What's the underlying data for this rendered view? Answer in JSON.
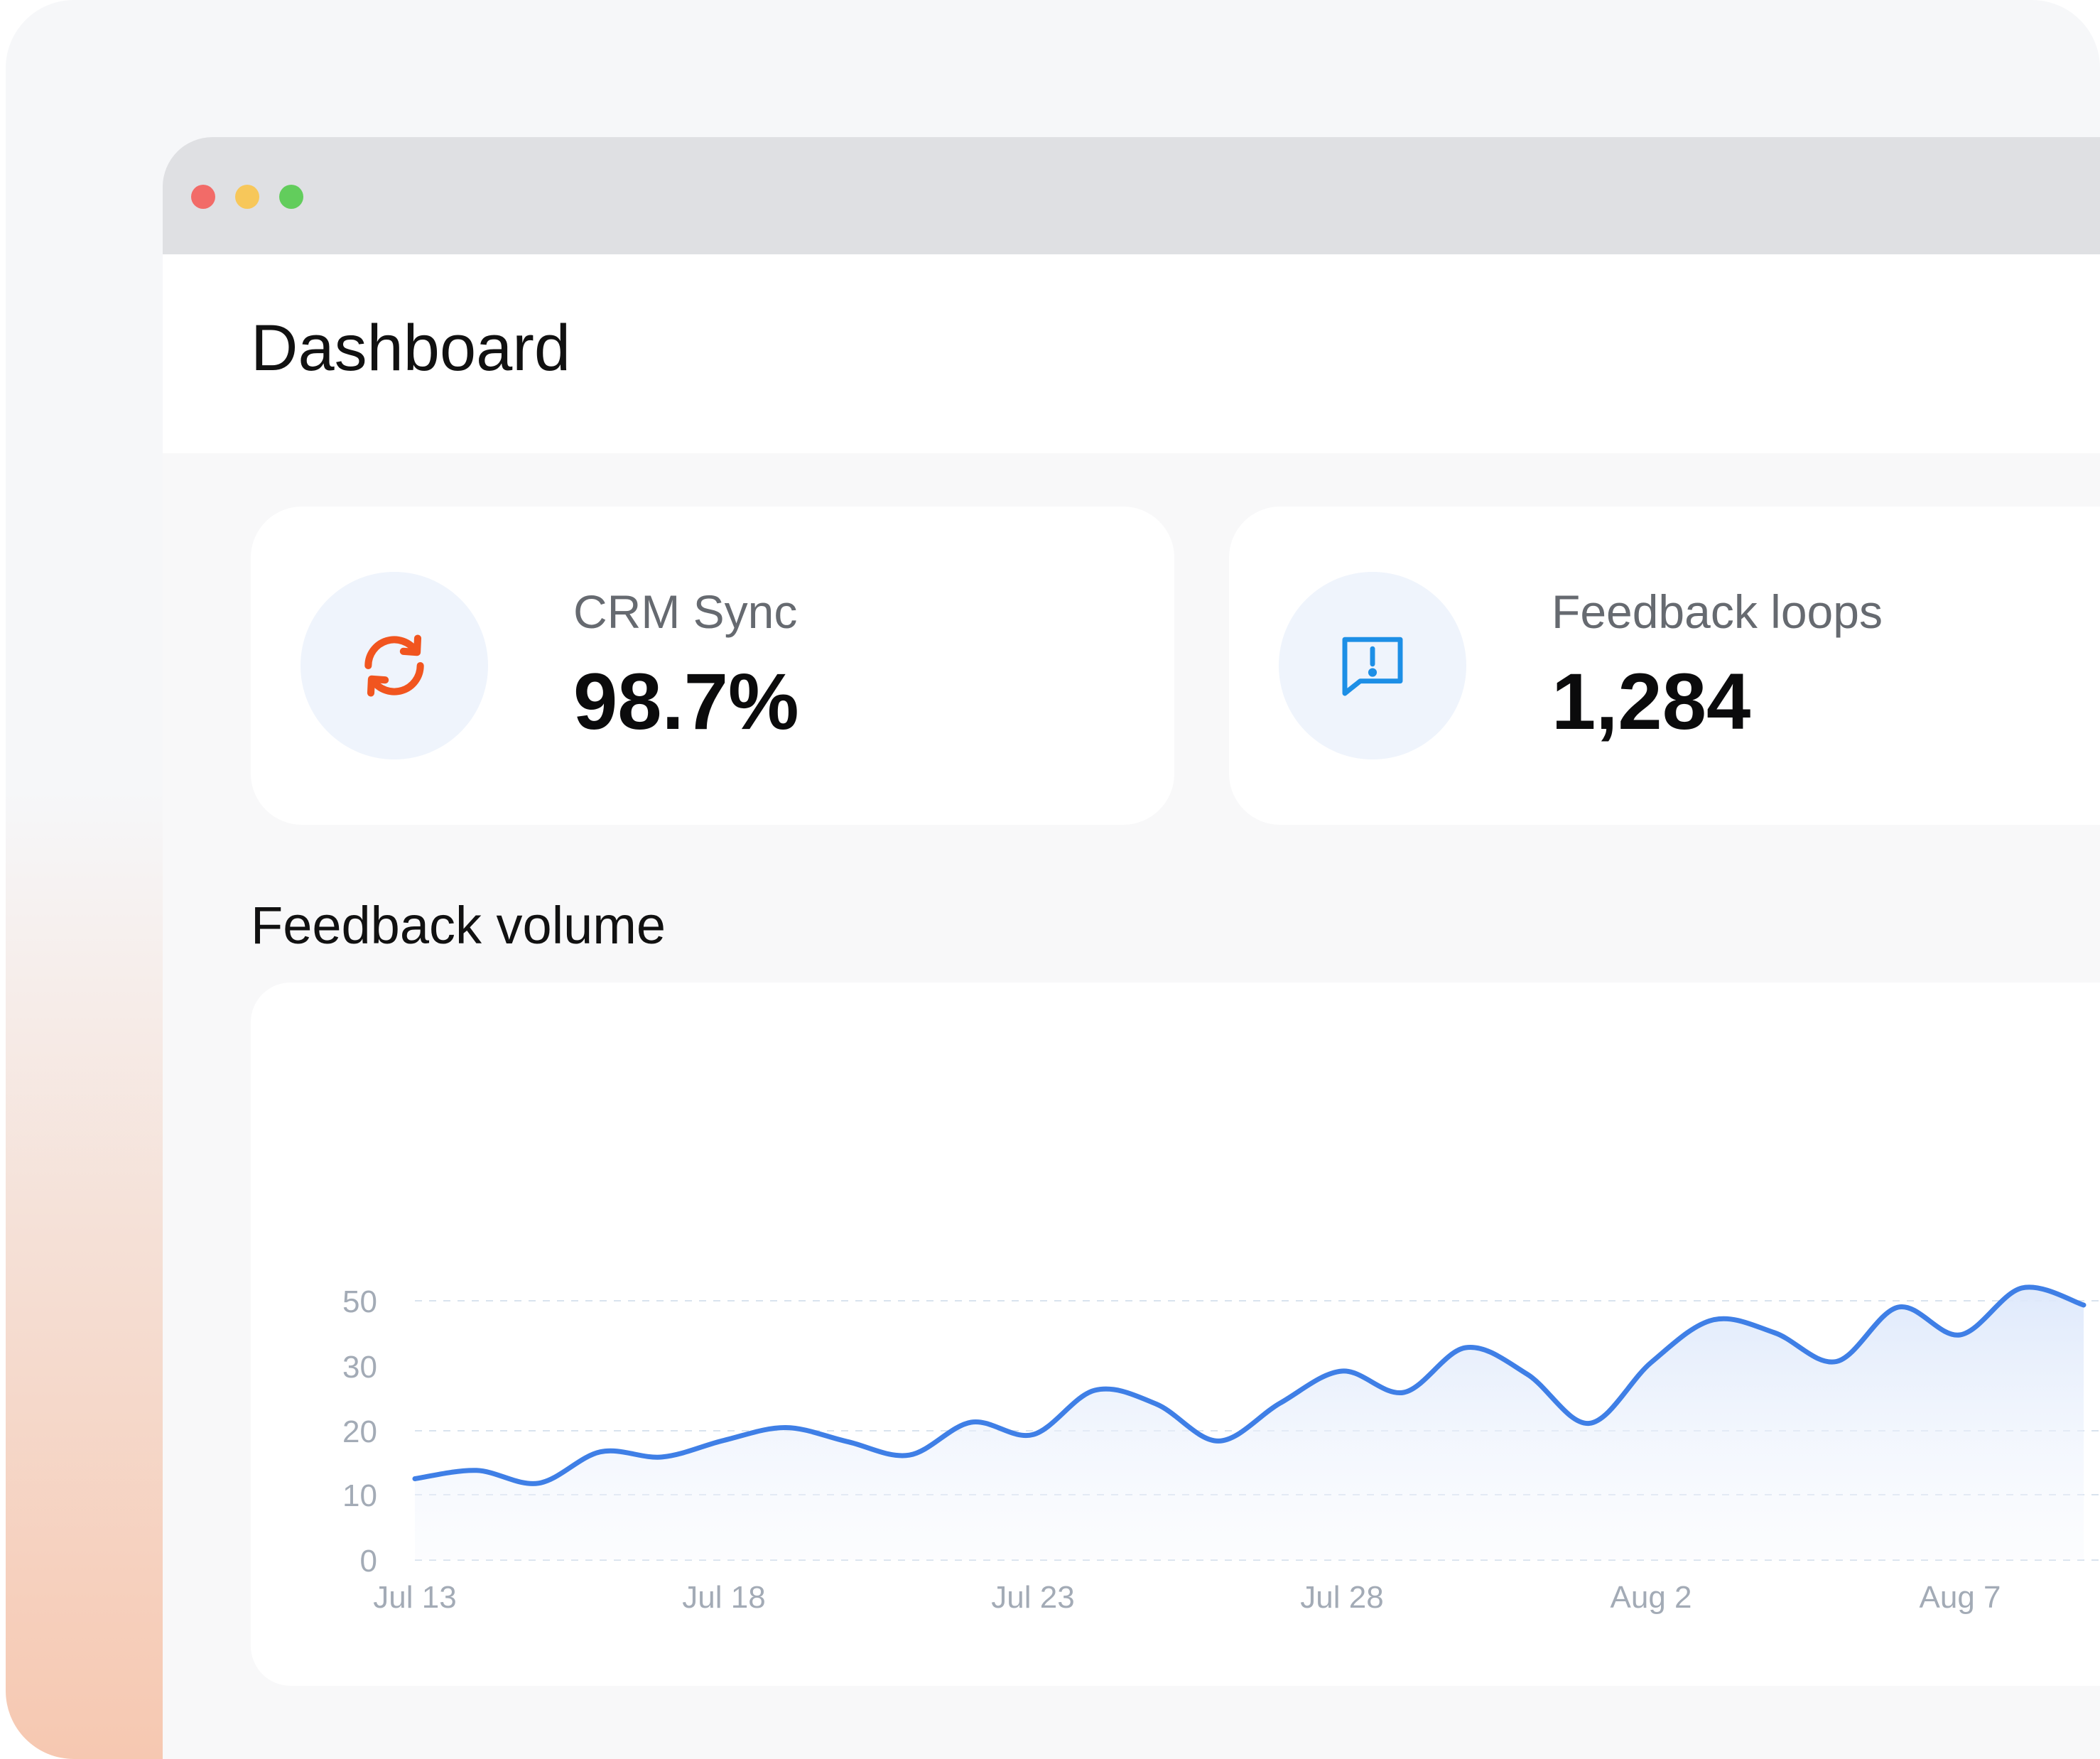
{
  "window": {
    "controls": [
      "close",
      "minimize",
      "maximize"
    ],
    "colors": {
      "close": "#f26b68",
      "minimize": "#f7c75a",
      "maximize": "#62cd5c"
    }
  },
  "header": {
    "title": "Dashboard"
  },
  "stats": [
    {
      "label": "CRM Sync",
      "value": "98.7%",
      "icon": "sync-icon",
      "icon_color": "#f1551f"
    },
    {
      "label": "Feedback loops",
      "value": "1,284",
      "icon": "feedback-alert-icon",
      "icon_color": "#1d8fe6"
    }
  ],
  "section": {
    "title": "Feedback volume"
  },
  "chart_data": {
    "type": "area",
    "title": "Feedback volume",
    "xlabel": "",
    "ylabel": "",
    "ylim": [
      0,
      50
    ],
    "yticks": [
      "0",
      "10",
      "20",
      "30",
      "50"
    ],
    "xtick_labels": [
      "Jul 13",
      "Jul 18",
      "Jul 23",
      "Jul 28",
      "Aug 2",
      "Aug 7"
    ],
    "grid": true,
    "line_color": "#3f7fe6",
    "x": [
      "Jul 13",
      "Jul 14",
      "Jul 15",
      "Jul 16",
      "Jul 17",
      "Jul 18",
      "Jul 19",
      "Jul 20",
      "Jul 21",
      "Jul 22",
      "Jul 23",
      "Jul 24",
      "Jul 25",
      "Jul 26",
      "Jul 27",
      "Jul 28",
      "Jul 29",
      "Jul 30",
      "Jul 31",
      "Aug 1",
      "Aug 2",
      "Aug 3",
      "Aug 4",
      "Aug 5",
      "Aug 6",
      "Aug 7",
      "Aug 8",
      "Aug 9"
    ],
    "series": [
      {
        "values": [
          12.5,
          13.8,
          11.8,
          16.7,
          15.9,
          18.5,
          20.3,
          18.3,
          16.2,
          20.8,
          19.4,
          23.8,
          22.5,
          18.4,
          22.6,
          25.6,
          23.6,
          27.8,
          25.3,
          20.7,
          26.4,
          30.4,
          29.2,
          26.5,
          31.6,
          29.0,
          33.4,
          31.8
        ]
      }
    ]
  }
}
